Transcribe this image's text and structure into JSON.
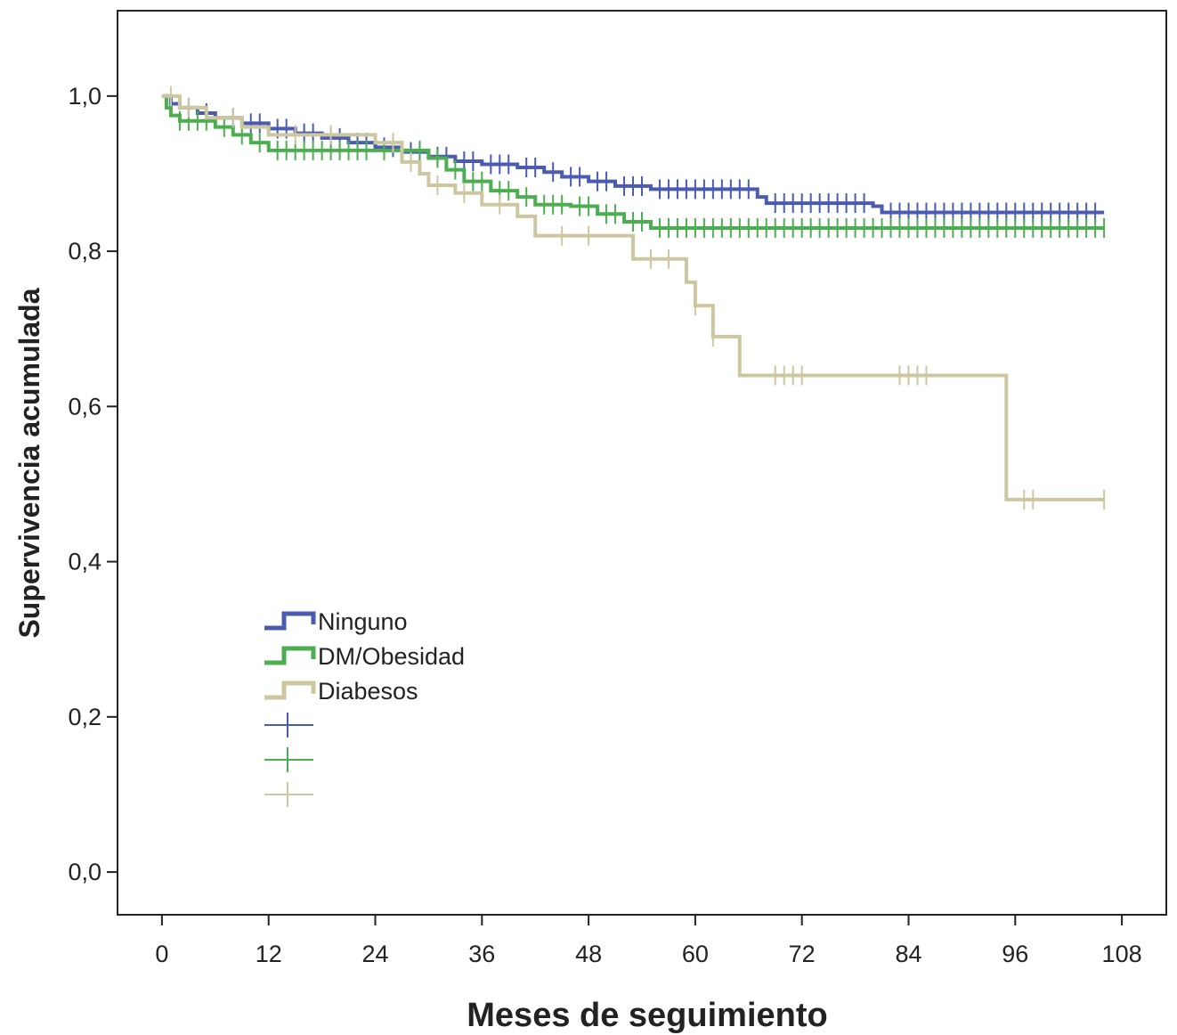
{
  "chart_data": {
    "type": "line",
    "subtype": "kaplan-meier-step",
    "title": "",
    "xlabel": "Meses de seguimiento",
    "ylabel": "Supervivencia acumulada",
    "xlim": [
      -5,
      113
    ],
    "ylim": [
      -0.055,
      1.11
    ],
    "xticks": [
      0,
      12,
      24,
      36,
      48,
      60,
      72,
      84,
      96,
      108
    ],
    "xtick_labels": [
      "0",
      "12",
      "24",
      "36",
      "48",
      "60",
      "72",
      "84",
      "96",
      "108"
    ],
    "yticks": [
      0,
      0.2,
      0.4,
      0.6,
      0.8,
      1.0
    ],
    "ytick_labels": [
      "0,0",
      "0,2",
      "0,4",
      "0,6",
      "0,8",
      "1,0"
    ],
    "grid": false,
    "legend_position": "lower-left inside plot",
    "legend_censored_markers": [
      "",
      "",
      ""
    ],
    "series": [
      {
        "name": "Ninguno",
        "color": "#4a5bb0",
        "steps": [
          [
            0,
            1.0
          ],
          [
            1,
            0.99
          ],
          [
            2,
            0.985
          ],
          [
            4,
            0.978
          ],
          [
            6,
            0.972
          ],
          [
            9,
            0.965
          ],
          [
            12,
            0.958
          ],
          [
            15,
            0.952
          ],
          [
            18,
            0.946
          ],
          [
            21,
            0.94
          ],
          [
            24,
            0.934
          ],
          [
            27,
            0.928
          ],
          [
            30,
            0.922
          ],
          [
            33,
            0.916
          ],
          [
            36,
            0.912
          ],
          [
            40,
            0.908
          ],
          [
            43,
            0.902
          ],
          [
            45,
            0.896
          ],
          [
            48,
            0.89
          ],
          [
            51,
            0.884
          ],
          [
            55,
            0.88
          ],
          [
            67,
            0.87
          ],
          [
            68,
            0.862
          ],
          [
            80,
            0.858
          ],
          [
            81,
            0.85
          ],
          [
            106,
            0.85
          ]
        ],
        "censored": [
          3,
          5,
          8,
          10,
          11,
          13,
          14,
          16,
          17,
          19,
          20,
          22,
          23,
          25,
          26,
          28,
          29,
          31,
          32,
          34,
          35,
          37,
          38,
          39,
          41,
          42,
          44,
          46,
          47,
          49,
          50,
          52,
          53,
          54,
          56,
          57,
          58,
          59,
          60,
          61,
          62,
          63,
          64,
          65,
          66,
          69,
          70,
          71,
          72,
          73,
          74,
          75,
          76,
          77,
          78,
          79,
          82,
          83,
          84,
          85,
          86,
          87,
          88,
          89,
          90,
          91,
          92,
          93,
          94,
          95,
          96,
          97,
          98,
          99,
          100,
          101,
          102,
          103,
          104,
          105
        ]
      },
      {
        "name": "DM/Obesidad",
        "color": "#4cae50",
        "steps": [
          [
            0,
            1.0
          ],
          [
            0.5,
            0.985
          ],
          [
            1,
            0.975
          ],
          [
            2,
            0.968
          ],
          [
            6,
            0.96
          ],
          [
            8,
            0.95
          ],
          [
            10,
            0.94
          ],
          [
            12,
            0.93
          ],
          [
            30,
            0.92
          ],
          [
            32,
            0.905
          ],
          [
            34,
            0.89
          ],
          [
            37,
            0.878
          ],
          [
            40,
            0.87
          ],
          [
            42,
            0.86
          ],
          [
            46,
            0.858
          ],
          [
            49,
            0.848
          ],
          [
            52,
            0.838
          ],
          [
            55,
            0.83
          ],
          [
            106,
            0.83
          ]
        ],
        "censored": [
          2,
          3,
          4,
          5,
          7,
          9,
          11,
          13,
          14,
          15,
          16,
          17,
          18,
          19,
          20,
          21,
          22,
          23,
          25,
          27,
          29,
          31,
          33,
          35,
          36,
          38,
          39,
          41,
          43,
          44,
          45,
          47,
          48,
          50,
          51,
          53,
          54,
          56,
          57,
          58,
          59,
          60,
          61,
          62,
          63,
          64,
          65,
          66,
          67,
          68,
          69,
          70,
          71,
          72,
          73,
          74,
          75,
          76,
          77,
          78,
          79,
          80,
          81,
          82,
          83,
          84,
          85,
          86,
          87,
          88,
          89,
          90,
          91,
          92,
          93,
          94,
          95,
          96,
          97,
          98,
          99,
          100,
          101,
          102,
          103,
          104,
          105,
          106
        ]
      },
      {
        "name": "Diabesos",
        "color": "#cdc7a0",
        "steps": [
          [
            0,
            1.0
          ],
          [
            2,
            0.985
          ],
          [
            5,
            0.972
          ],
          [
            9,
            0.96
          ],
          [
            12,
            0.95
          ],
          [
            24,
            0.94
          ],
          [
            27,
            0.915
          ],
          [
            29,
            0.9
          ],
          [
            30,
            0.885
          ],
          [
            33,
            0.875
          ],
          [
            36,
            0.86
          ],
          [
            40,
            0.845
          ],
          [
            42,
            0.82
          ],
          [
            53,
            0.79
          ],
          [
            59,
            0.76
          ],
          [
            60,
            0.73
          ],
          [
            62,
            0.69
          ],
          [
            65,
            0.64
          ],
          [
            95,
            0.48
          ],
          [
            106,
            0.48
          ]
        ],
        "censored": [
          1,
          3,
          8,
          15,
          19,
          26,
          28,
          31,
          34,
          38,
          45,
          48,
          55,
          57,
          60,
          62,
          69,
          70,
          71,
          72,
          83,
          84,
          85,
          86,
          97,
          98,
          106
        ]
      }
    ]
  }
}
